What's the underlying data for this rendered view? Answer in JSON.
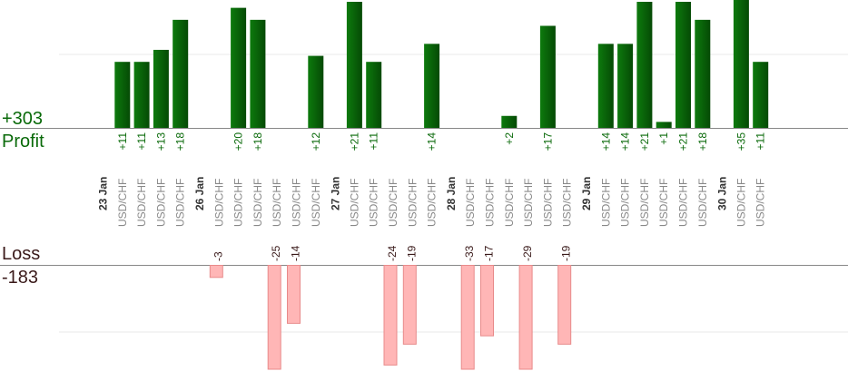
{
  "summary": {
    "profit_total": "+303",
    "profit_label": "Profit",
    "loss_label": "Loss",
    "loss_total": "-183"
  },
  "colors": {
    "profit_bar": "#0b6e0b",
    "profit_bar_dark": "#064f06",
    "profit_text": "#0a6a0a",
    "loss_bar": "#ffb6b6",
    "loss_bar_border": "#e88a8a",
    "loss_text": "#3a1a1a",
    "date_text": "#333333",
    "pair_text": "#888888",
    "axis": "#888888",
    "grid": "#e8e8e8"
  },
  "chart_data": {
    "type": "bar",
    "profit_scale_max": 21,
    "loss_scale_max": 25,
    "groups": [
      {
        "date": "23 Jan",
        "trades": [
          {
            "pair": "USD/CHF",
            "value": 11
          },
          {
            "pair": "USD/CHF",
            "value": 11
          },
          {
            "pair": "USD/CHF",
            "value": 13
          },
          {
            "pair": "USD/CHF",
            "value": 18
          }
        ]
      },
      {
        "date": "26 Jan",
        "trades": [
          {
            "pair": "USD/CHF",
            "value": -3
          },
          {
            "pair": "USD/CHF",
            "value": 20
          },
          {
            "pair": "USD/CHF",
            "value": 18
          },
          {
            "pair": "USD/CHF",
            "value": -25
          },
          {
            "pair": "USD/CHF",
            "value": -14
          },
          {
            "pair": "USD/CHF",
            "value": 12
          }
        ]
      },
      {
        "date": "27 Jan",
        "trades": [
          {
            "pair": "USD/CHF",
            "value": 21
          },
          {
            "pair": "USD/CHF",
            "value": 11
          },
          {
            "pair": "USD/CHF",
            "value": -24
          },
          {
            "pair": "USD/CHF",
            "value": -19
          },
          {
            "pair": "USD/CHF",
            "value": 14
          }
        ]
      },
      {
        "date": "28 Jan",
        "trades": [
          {
            "pair": "USD/CHF",
            "value": -33
          },
          {
            "pair": "USD/CHF",
            "value": -17
          },
          {
            "pair": "USD/CHF",
            "value": 2
          },
          {
            "pair": "USD/CHF",
            "value": -29
          },
          {
            "pair": "USD/CHF",
            "value": 17
          },
          {
            "pair": "USD/CHF",
            "value": -19
          }
        ]
      },
      {
        "date": "29 Jan",
        "trades": [
          {
            "pair": "USD/CHF",
            "value": 14
          },
          {
            "pair": "USD/CHF",
            "value": 14
          },
          {
            "pair": "USD/CHF",
            "value": 21
          },
          {
            "pair": "USD/CHF",
            "value": 1
          },
          {
            "pair": "USD/CHF",
            "value": 21
          },
          {
            "pair": "USD/CHF",
            "value": 18
          }
        ]
      },
      {
        "date": "30 Jan",
        "trades": [
          {
            "pair": "USD/CHF",
            "value": 35
          },
          {
            "pair": "USD/CHF",
            "value": 11
          }
        ]
      }
    ]
  }
}
